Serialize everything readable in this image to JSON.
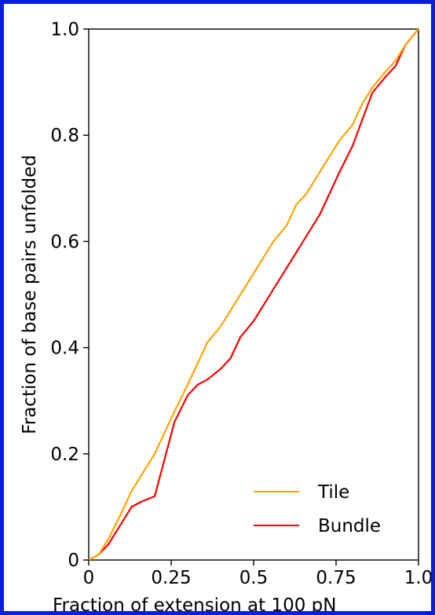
{
  "chart_data": {
    "type": "line",
    "title": "",
    "xlabel": "Fraction of extension at 100 pN",
    "ylabel": "Fraction of base pairs unfolded",
    "xlim": [
      0,
      1.0
    ],
    "ylim": [
      0,
      1.0
    ],
    "x_ticks": [
      0,
      0.25,
      0.5,
      0.75,
      1.0
    ],
    "x_tick_labels": [
      "0",
      "0.25",
      "0.5",
      "0.75",
      "1.0"
    ],
    "y_ticks": [
      0,
      0.2,
      0.4,
      0.6,
      0.8,
      1.0
    ],
    "y_tick_labels": [
      "0",
      "0.2",
      "0.4",
      "0.6",
      "0.8",
      "1.0"
    ],
    "grid": false,
    "legend_position": "bottom-right",
    "series": [
      {
        "name": "Tile",
        "color": "#ffa500",
        "x": [
          0,
          0.03,
          0.06,
          0.1,
          0.13,
          0.16,
          0.2,
          0.23,
          0.26,
          0.3,
          0.33,
          0.36,
          0.4,
          0.43,
          0.46,
          0.5,
          0.53,
          0.56,
          0.6,
          0.63,
          0.66,
          0.7,
          0.73,
          0.76,
          0.8,
          0.83,
          0.86,
          0.9,
          0.93,
          0.96,
          1.0
        ],
        "y": [
          0,
          0.01,
          0.04,
          0.09,
          0.13,
          0.16,
          0.2,
          0.24,
          0.28,
          0.33,
          0.37,
          0.41,
          0.44,
          0.47,
          0.5,
          0.54,
          0.57,
          0.6,
          0.63,
          0.67,
          0.69,
          0.73,
          0.76,
          0.79,
          0.82,
          0.86,
          0.89,
          0.92,
          0.94,
          0.97,
          1.0
        ]
      },
      {
        "name": "Bundle",
        "color": "#ff0000",
        "x": [
          0,
          0.03,
          0.06,
          0.1,
          0.13,
          0.16,
          0.2,
          0.23,
          0.26,
          0.3,
          0.33,
          0.36,
          0.4,
          0.43,
          0.46,
          0.5,
          0.53,
          0.56,
          0.6,
          0.63,
          0.66,
          0.7,
          0.73,
          0.76,
          0.8,
          0.83,
          0.86,
          0.9,
          0.93,
          0.96,
          1.0
        ],
        "y": [
          0,
          0.01,
          0.03,
          0.07,
          0.1,
          0.11,
          0.12,
          0.19,
          0.26,
          0.31,
          0.33,
          0.34,
          0.36,
          0.38,
          0.42,
          0.45,
          0.48,
          0.51,
          0.55,
          0.58,
          0.61,
          0.65,
          0.69,
          0.73,
          0.78,
          0.83,
          0.88,
          0.91,
          0.93,
          0.97,
          1.0
        ]
      }
    ]
  }
}
